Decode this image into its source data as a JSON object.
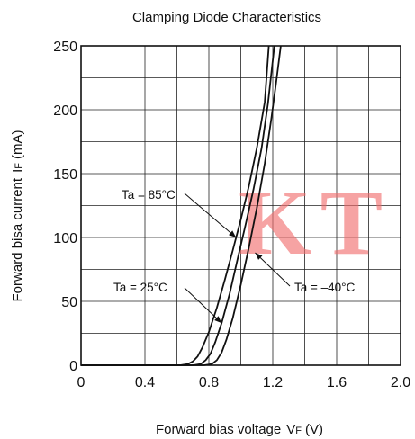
{
  "chart_data": {
    "type": "line",
    "title": "Clamping Diode Characteristics",
    "xlabel": "Forward bias voltage",
    "xlabel_symbol": "V",
    "xlabel_subscript": "F",
    "xlabel_unit": "(V)",
    "ylabel": "Forward bisa current",
    "ylabel_symbol": "I",
    "ylabel_subscript": "F",
    "ylabel_unit": "(mA)",
    "xlim": [
      0,
      2.0
    ],
    "ylim": [
      0,
      250
    ],
    "x_ticks": [
      0,
      0.4,
      0.8,
      1.2,
      1.6,
      2.0
    ],
    "x_tick_labels": [
      "0",
      "0.4",
      "0.8",
      "1.2",
      "1.6",
      "2.0"
    ],
    "y_ticks": [
      0,
      50,
      100,
      150,
      200,
      250
    ],
    "y_tick_labels": [
      "0",
      "50",
      "100",
      "150",
      "200",
      "250"
    ],
    "x_grid_step": 0.2,
    "y_grid_step": 25,
    "grid": true,
    "line_color": "#111111",
    "series": [
      {
        "name": "Ta = 85°C",
        "x": [
          0.0,
          0.62,
          0.67,
          0.7,
          0.73,
          0.76,
          0.8,
          0.85,
          0.9,
          0.95,
          1.0,
          1.05,
          1.1,
          1.15,
          1.175
        ],
        "y": [
          0,
          0,
          1,
          3,
          7,
          14,
          26,
          45,
          67,
          90,
          114,
          140,
          170,
          206,
          250
        ]
      },
      {
        "name": "Ta = 25°C",
        "x": [
          0.0,
          0.7,
          0.75,
          0.78,
          0.81,
          0.84,
          0.88,
          0.93,
          0.98,
          1.03,
          1.08,
          1.13,
          1.17,
          1.21
        ],
        "y": [
          0,
          0,
          1,
          4,
          9,
          18,
          33,
          56,
          83,
          110,
          138,
          170,
          205,
          250
        ]
      },
      {
        "name": "Ta = –40°C",
        "x": [
          0.0,
          0.77,
          0.82,
          0.85,
          0.88,
          0.91,
          0.95,
          1.0,
          1.05,
          1.1,
          1.15,
          1.19,
          1.22,
          1.25
        ],
        "y": [
          0,
          0,
          1,
          4,
          10,
          20,
          37,
          63,
          92,
          123,
          158,
          192,
          220,
          250
        ]
      }
    ],
    "annotations": [
      {
        "text": "Ta = 85°C",
        "curve": 0,
        "at": [
          0.97,
          100
        ]
      },
      {
        "text": "Ta = 25°C",
        "curve": 1,
        "at": [
          0.88,
          33
        ]
      },
      {
        "text": "Ta = –40°C",
        "curve": 2,
        "at": [
          1.09,
          88
        ]
      }
    ],
    "watermark": "KT"
  }
}
